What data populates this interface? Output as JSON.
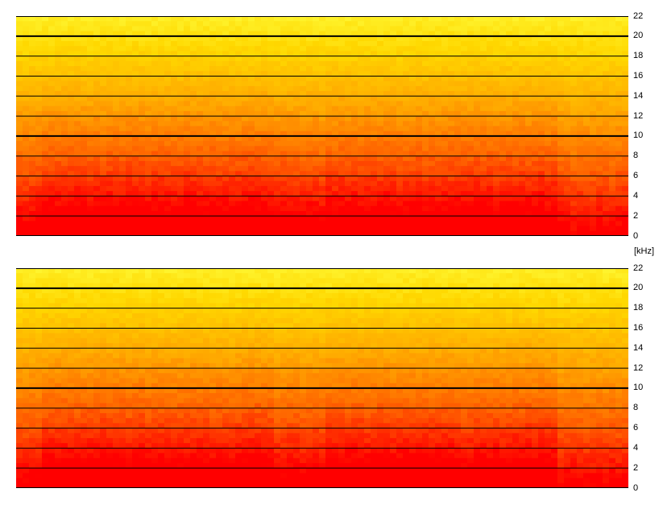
{
  "chart_data": [
    {
      "type": "heatmap",
      "channel": 1,
      "ylabel": "[kHz]",
      "ylim": [
        0,
        22
      ],
      "yticks": [
        0,
        2,
        4,
        6,
        8,
        10,
        12,
        14,
        16,
        18,
        20,
        22
      ],
      "major_ticks": [
        10,
        20
      ],
      "colormap": [
        "#ff0000",
        "#ff6600",
        "#ffaa00",
        "#ffd800",
        "#ffff40"
      ]
    },
    {
      "type": "heatmap",
      "channel": 2,
      "ylabel": "[kHz]",
      "ylim": [
        0,
        22
      ],
      "yticks": [
        0,
        2,
        4,
        6,
        8,
        10,
        12,
        14,
        16,
        18,
        20,
        22
      ],
      "major_ticks": [
        10,
        20
      ],
      "colormap": [
        "#ff0000",
        "#ff6600",
        "#ffaa00",
        "#ffd800",
        "#ffff40"
      ]
    }
  ],
  "unit_label": "[kHz]"
}
